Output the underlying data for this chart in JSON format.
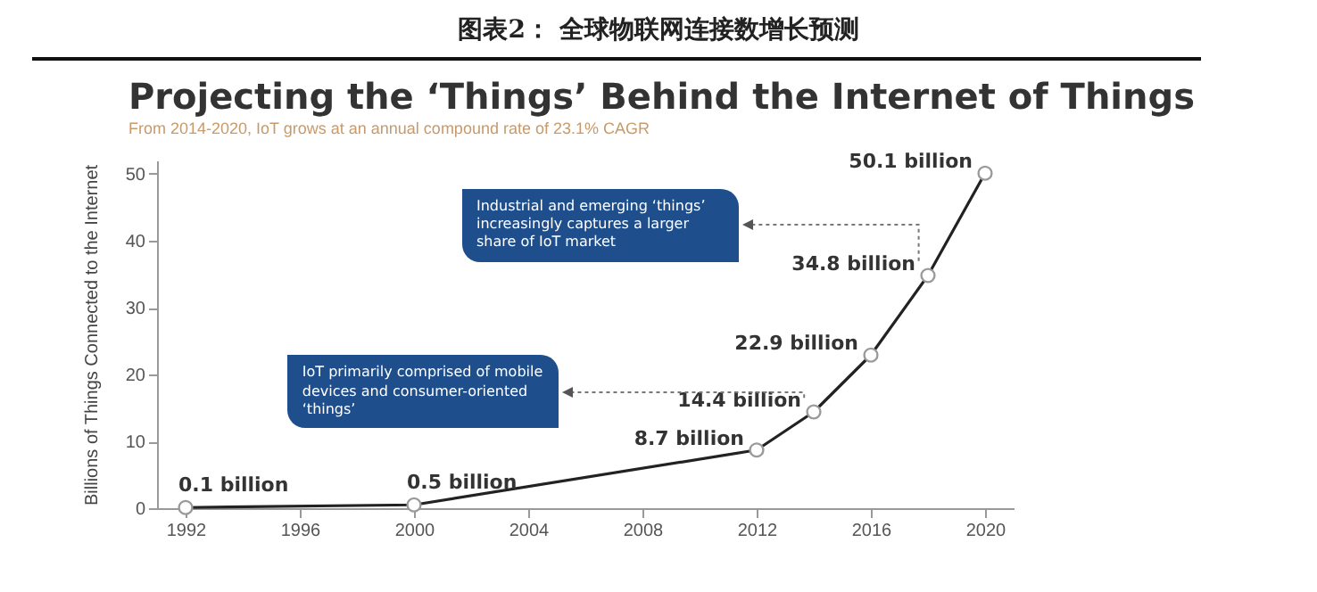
{
  "chart_data": {
    "type": "line",
    "title": "图表2：  全球物联网连接数增长预测",
    "subtitle": "Projecting the ‘Things’ Behind the Internet of Things",
    "annotations": [
      "From 2014-2020, IoT grows at an annual compound rate of 23.1% CAGR",
      "IoT primarily comprised of mobile devices and consumer-oriented ‘things’",
      "Industrial and emerging ‘things’ increasingly captures a larger share of IoT market"
    ],
    "ylabel": "Billions of Things Connected to the Internet",
    "x": [
      1992,
      2000,
      2012,
      2014,
      2016,
      2018,
      2020
    ],
    "series": [
      {
        "color": "#222222",
        "values": [
          0.1,
          0.5,
          8.7,
          14.4,
          22.9,
          34.8,
          50.1
        ],
        "value_labels": [
          "0.1 billion",
          "0.5 billion",
          "8.7 billion",
          "14.4 billion",
          "22.9 billion",
          "34.8 billion",
          "50.1 billion"
        ]
      }
    ],
    "xlim": [
      1991,
      2021
    ],
    "xticks": [
      1992,
      1996,
      2000,
      2004,
      2008,
      2012,
      2016,
      2020
    ],
    "ylim": [
      0,
      52
    ],
    "yticks": [
      0,
      10,
      20,
      30,
      40,
      50
    ],
    "grid": false,
    "marker": "circle",
    "line_style": "solid"
  }
}
